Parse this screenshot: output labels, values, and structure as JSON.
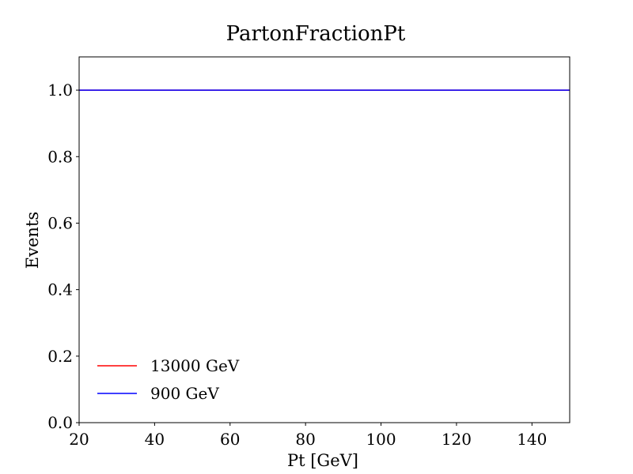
{
  "chart_data": {
    "type": "line",
    "title": "PartonFractionPt",
    "xlabel": "Pt [GeV]",
    "ylabel": "Events",
    "xlim": [
      20,
      150
    ],
    "ylim": [
      0,
      1.1
    ],
    "xticks": [
      20,
      40,
      60,
      80,
      100,
      120,
      140
    ],
    "yticks": [
      0.0,
      0.2,
      0.4,
      0.6,
      0.8,
      1.0
    ],
    "xtick_labels": [
      "20",
      "40",
      "60",
      "80",
      "100",
      "120",
      "140"
    ],
    "ytick_labels": [
      "0.0",
      "0.2",
      "0.4",
      "0.6",
      "0.8",
      "1.0"
    ],
    "legend_position": "lower-left",
    "grid": false,
    "series": [
      {
        "name": "13000 GeV",
        "color": "#ff0000",
        "x": [
          20,
          150
        ],
        "y": [
          1.0,
          1.0
        ]
      },
      {
        "name": "900 GeV",
        "color": "#0000ff",
        "x": [
          20,
          150
        ],
        "y": [
          1.0,
          1.0
        ]
      }
    ]
  }
}
